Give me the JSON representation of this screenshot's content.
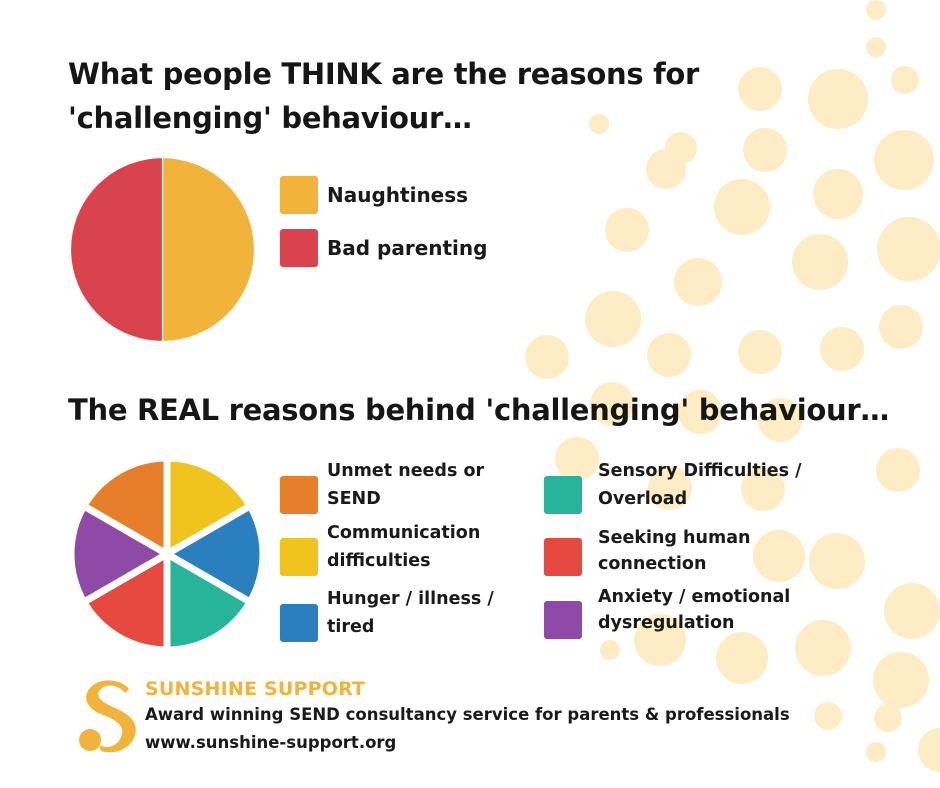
{
  "colors": {
    "dots": "#fdecc4",
    "naughtiness": "#f2b33b",
    "bad_parenting": "#d9434d",
    "unmet_needs": "#e67e2a",
    "communication": "#f1c41d",
    "hunger": "#2a7fbf",
    "sensory": "#26b59a",
    "seeking": "#e6493f",
    "anxiety": "#8e4aa6",
    "brand": "#f2b33b"
  },
  "headings": {
    "think": "What people THINK are the reasons for 'challenging' behaviour…",
    "real": "The REAL reasons behind 'challenging' behaviour…"
  },
  "chart_data": [
    {
      "type": "pie",
      "title": "What people THINK are the reasons for 'challenging' behaviour…",
      "categories": [
        "Naughtiness",
        "Bad parenting"
      ],
      "values": [
        50,
        50
      ],
      "colors": [
        "#f2b33b",
        "#d9434d"
      ]
    },
    {
      "type": "pie",
      "title": "The REAL reasons behind 'challenging' behaviour…",
      "categories": [
        "Unmet needs or SEND",
        "Communication difficulties",
        "Hunger / illness / tired",
        "Sensory Difficulties / Overload",
        "Seeking human connection",
        "Anxiety / emotional dysregulation"
      ],
      "slice_order_clockwise_from_top": [
        "Communication difficulties",
        "Hunger / illness / tired",
        "Sensory Difficulties / Overload",
        "Seeking human connection",
        "Anxiety / emotional dysregulation",
        "Unmet needs or SEND"
      ],
      "values": [
        1,
        1,
        1,
        1,
        1,
        1
      ],
      "colors": [
        "#f1c41d",
        "#2a7fbf",
        "#26b59a",
        "#e6493f",
        "#8e4aa6",
        "#e67e2a"
      ]
    }
  ],
  "legend_think": [
    {
      "label": "Naughtiness",
      "color": "#f2b33b"
    },
    {
      "label": "Bad parenting",
      "color": "#d9434d"
    }
  ],
  "legend_real": [
    {
      "label": "Unmet needs or SEND",
      "color": "#e67e2a"
    },
    {
      "label": "Communication difficulties",
      "color": "#f1c41d"
    },
    {
      "label": "Hunger / illness / tired",
      "color": "#2a7fbf"
    },
    {
      "label": "Sensory Difficulties / Overload",
      "color": "#26b59a"
    },
    {
      "label": "Seeking human connection",
      "color": "#e6493f"
    },
    {
      "label": "Anxiety / emotional dysregulation",
      "color": "#8e4aa6"
    }
  ],
  "footer": {
    "brand": "SUNSHINE SUPPORT",
    "tagline": "Award winning SEND consultancy service for parents & professionals",
    "website": "www.sunshine-support.org",
    "logo_icon": "sunshine-s-logo-icon"
  }
}
